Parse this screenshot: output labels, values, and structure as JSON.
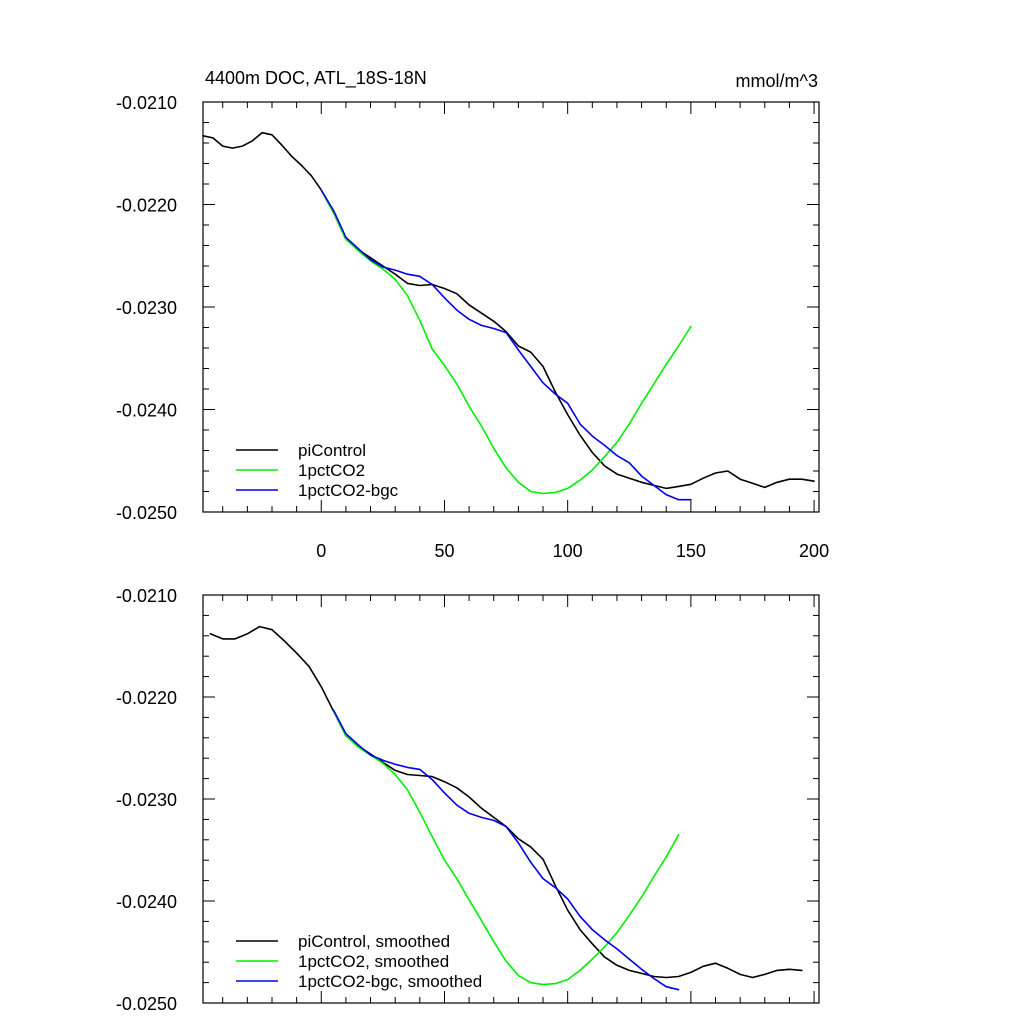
{
  "chart_data": [
    {
      "type": "line",
      "title": "4400m DOC, ATL_18S-18N",
      "units": "mmol/m^3",
      "xlim": [
        -48,
        202
      ],
      "ylim": [
        -0.025,
        -0.021
      ],
      "xticks": [
        0,
        50,
        100,
        150,
        200
      ],
      "xtick_labels": [
        "0",
        "50",
        "100",
        "150",
        "200"
      ],
      "yticks": [
        -0.021,
        -0.022,
        -0.023,
        -0.024,
        -0.025
      ],
      "ytick_labels": [
        "-0.0210",
        "-0.0220",
        "-0.0230",
        "-0.0240",
        "-0.0250"
      ],
      "legend_position": "bottom-left",
      "series": [
        {
          "name": "piControl",
          "color": "#000000",
          "x": [
            -48,
            -44,
            -40,
            -36,
            -32,
            -28,
            -24,
            -20,
            -16,
            -12,
            -8,
            -4,
            0,
            5,
            10,
            15,
            20,
            25,
            30,
            35,
            40,
            45,
            50,
            55,
            60,
            65,
            70,
            75,
            80,
            85,
            90,
            95,
            100,
            105,
            110,
            115,
            120,
            125,
            130,
            135,
            140,
            145,
            150,
            155,
            160,
            165,
            170,
            175,
            180,
            185,
            190,
            195,
            200
          ],
          "y": [
            -0.02133,
            -0.02135,
            -0.02143,
            -0.02145,
            -0.02143,
            -0.02138,
            -0.0213,
            -0.02132,
            -0.02142,
            -0.02153,
            -0.02162,
            -0.02172,
            -0.02186,
            -0.02208,
            -0.02234,
            -0.02244,
            -0.02252,
            -0.0226,
            -0.02268,
            -0.02277,
            -0.02279,
            -0.02278,
            -0.02282,
            -0.02287,
            -0.02298,
            -0.02306,
            -0.02314,
            -0.02324,
            -0.02338,
            -0.02344,
            -0.02358,
            -0.02383,
            -0.02405,
            -0.02425,
            -0.02442,
            -0.02455,
            -0.02463,
            -0.02467,
            -0.02471,
            -0.02474,
            -0.02477,
            -0.02475,
            -0.02473,
            -0.02467,
            -0.02462,
            -0.0246,
            -0.02468,
            -0.02472,
            -0.02476,
            -0.02471,
            -0.02468,
            -0.02468,
            -0.0247
          ]
        },
        {
          "name": "1pctCO2",
          "color": "#00ee00",
          "x": [
            0,
            5,
            10,
            15,
            20,
            25,
            30,
            35,
            40,
            45,
            50,
            55,
            60,
            65,
            70,
            75,
            80,
            85,
            90,
            95,
            100,
            105,
            110,
            115,
            120,
            125,
            130,
            135,
            140,
            145,
            150
          ],
          "y": [
            -0.02186,
            -0.02208,
            -0.02234,
            -0.02245,
            -0.02255,
            -0.02263,
            -0.02273,
            -0.02289,
            -0.02313,
            -0.02341,
            -0.02357,
            -0.02375,
            -0.02397,
            -0.02416,
            -0.02438,
            -0.02457,
            -0.02471,
            -0.0248,
            -0.02482,
            -0.02481,
            -0.02477,
            -0.02469,
            -0.02459,
            -0.02446,
            -0.02432,
            -0.02414,
            -0.02394,
            -0.02375,
            -0.02356,
            -0.02338,
            -0.02319
          ]
        },
        {
          "name": "1pctCO2-bgc",
          "color": "#0000ee",
          "x": [
            0,
            5,
            10,
            15,
            20,
            25,
            30,
            35,
            40,
            45,
            50,
            55,
            60,
            65,
            70,
            75,
            80,
            85,
            90,
            95,
            100,
            105,
            110,
            115,
            120,
            125,
            130,
            135,
            140,
            145,
            150
          ],
          "y": [
            -0.02186,
            -0.02206,
            -0.02232,
            -0.02243,
            -0.02254,
            -0.02261,
            -0.02264,
            -0.02268,
            -0.0227,
            -0.02278,
            -0.02291,
            -0.02303,
            -0.02312,
            -0.02318,
            -0.02321,
            -0.02325,
            -0.02342,
            -0.02358,
            -0.02374,
            -0.02385,
            -0.02394,
            -0.02414,
            -0.02426,
            -0.02435,
            -0.02445,
            -0.02452,
            -0.02465,
            -0.02474,
            -0.02483,
            -0.02488,
            -0.02488
          ]
        }
      ]
    },
    {
      "type": "line",
      "title": "",
      "xlim": [
        -48,
        202
      ],
      "ylim": [
        -0.025,
        -0.021
      ],
      "xticks": [
        0,
        50,
        100,
        150,
        200
      ],
      "yticks": [
        -0.021,
        -0.022,
        -0.023,
        -0.024,
        -0.025
      ],
      "ytick_labels": [
        "-0.0210",
        "-0.0220",
        "-0.0230",
        "-0.0240",
        "-0.0250"
      ],
      "legend_position": "bottom-left",
      "series": [
        {
          "name": "piControl, smoothed",
          "color": "#000000",
          "x": [
            -45,
            -40,
            -35,
            -30,
            -25,
            -20,
            -15,
            -10,
            -5,
            0,
            5,
            10,
            15,
            20,
            25,
            30,
            35,
            40,
            45,
            50,
            55,
            60,
            65,
            70,
            75,
            80,
            85,
            90,
            95,
            100,
            105,
            110,
            115,
            120,
            125,
            130,
            135,
            140,
            145,
            150,
            155,
            160,
            165,
            170,
            175,
            180,
            185,
            190,
            195
          ],
          "y": [
            -0.02138,
            -0.02143,
            -0.02143,
            -0.02138,
            -0.02131,
            -0.02134,
            -0.02145,
            -0.02157,
            -0.0217,
            -0.0219,
            -0.02214,
            -0.02238,
            -0.02248,
            -0.02256,
            -0.02264,
            -0.02272,
            -0.02276,
            -0.02277,
            -0.02278,
            -0.02283,
            -0.02289,
            -0.02298,
            -0.02309,
            -0.02318,
            -0.02327,
            -0.02339,
            -0.02347,
            -0.02359,
            -0.02385,
            -0.02409,
            -0.02428,
            -0.02442,
            -0.02455,
            -0.02463,
            -0.02468,
            -0.02471,
            -0.02474,
            -0.02475,
            -0.02474,
            -0.0247,
            -0.02464,
            -0.02461,
            -0.02466,
            -0.02472,
            -0.02475,
            -0.02472,
            -0.02468,
            -0.02467,
            -0.02468
          ]
        },
        {
          "name": "1pctCO2, smoothed",
          "color": "#00ee00",
          "x": [
            5,
            10,
            15,
            20,
            25,
            30,
            35,
            40,
            45,
            50,
            55,
            60,
            65,
            70,
            75,
            80,
            85,
            90,
            95,
            100,
            105,
            110,
            115,
            120,
            125,
            130,
            135,
            140,
            145
          ],
          "y": [
            -0.02214,
            -0.02238,
            -0.02249,
            -0.02257,
            -0.02265,
            -0.02276,
            -0.02291,
            -0.02313,
            -0.02337,
            -0.0236,
            -0.02378,
            -0.02399,
            -0.02419,
            -0.0244,
            -0.02459,
            -0.02473,
            -0.0248,
            -0.02482,
            -0.02481,
            -0.02477,
            -0.02468,
            -0.02457,
            -0.02445,
            -0.02431,
            -0.02414,
            -0.02396,
            -0.02376,
            -0.02357,
            -0.02335
          ]
        },
        {
          "name": "1pctCO2-bgc, smoothed",
          "color": "#0000ee",
          "x": [
            5,
            10,
            15,
            20,
            25,
            30,
            35,
            40,
            45,
            50,
            55,
            60,
            65,
            70,
            75,
            80,
            85,
            90,
            95,
            100,
            105,
            110,
            115,
            120,
            125,
            130,
            135,
            140,
            145
          ],
          "y": [
            -0.02213,
            -0.02236,
            -0.02247,
            -0.02257,
            -0.02262,
            -0.02266,
            -0.02269,
            -0.02271,
            -0.02281,
            -0.02294,
            -0.02306,
            -0.02314,
            -0.02318,
            -0.02321,
            -0.02327,
            -0.02343,
            -0.02362,
            -0.02378,
            -0.02387,
            -0.02398,
            -0.02415,
            -0.02428,
            -0.02438,
            -0.02447,
            -0.02457,
            -0.02467,
            -0.02476,
            -0.02484,
            -0.02487
          ]
        }
      ]
    }
  ]
}
